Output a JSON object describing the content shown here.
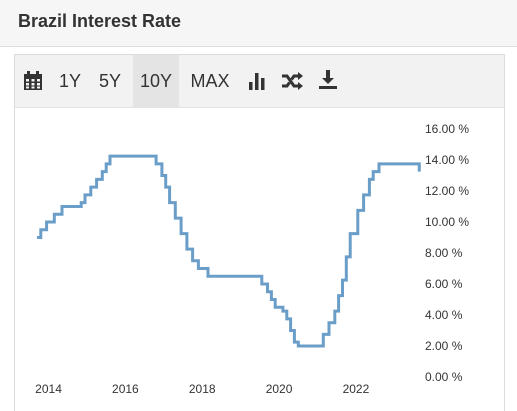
{
  "header": {
    "title": "Brazil Interest Rate"
  },
  "toolbar": {
    "ranges": [
      "1Y",
      "5Y",
      "10Y",
      "MAX"
    ],
    "active_range": "10Y",
    "icons": [
      "calendar-icon",
      "bar-chart-icon",
      "shuffle-icon",
      "download-icon"
    ]
  },
  "colors": {
    "line": "#6a9ec9",
    "toolbar_bg": "#f2f2f2",
    "active_bg": "#e4e4e4"
  },
  "chart_data": {
    "type": "line",
    "title": "",
    "xlabel": "",
    "ylabel": "",
    "x_ticks": [
      "2014",
      "2016",
      "2018",
      "2020",
      "2022"
    ],
    "y_ticks": [
      "0.00 %",
      "2.00 %",
      "4.00 %",
      "6.00 %",
      "8.00 %",
      "10.00 %",
      "12.00 %",
      "14.00 %",
      "16.00 %"
    ],
    "ylim": [
      0,
      16
    ],
    "xlim": [
      2013.7,
      2023.85
    ],
    "step": true,
    "grid": false,
    "series": [
      {
        "values": [
          [
            2013.7,
            9.0
          ],
          [
            2013.8,
            9.5
          ],
          [
            2013.95,
            10.0
          ],
          [
            2014.15,
            10.5
          ],
          [
            2014.35,
            11.0
          ],
          [
            2014.85,
            11.25
          ],
          [
            2014.95,
            11.75
          ],
          [
            2015.1,
            12.25
          ],
          [
            2015.25,
            12.75
          ],
          [
            2015.4,
            13.25
          ],
          [
            2015.5,
            13.75
          ],
          [
            2015.6,
            14.25
          ],
          [
            2016.8,
            13.75
          ],
          [
            2016.95,
            13.0
          ],
          [
            2017.05,
            12.25
          ],
          [
            2017.15,
            11.25
          ],
          [
            2017.3,
            10.25
          ],
          [
            2017.45,
            9.25
          ],
          [
            2017.6,
            8.25
          ],
          [
            2017.75,
            7.5
          ],
          [
            2017.9,
            7.0
          ],
          [
            2018.15,
            6.5
          ],
          [
            2019.55,
            6.0
          ],
          [
            2019.7,
            5.5
          ],
          [
            2019.8,
            5.0
          ],
          [
            2019.9,
            4.5
          ],
          [
            2020.1,
            4.25
          ],
          [
            2020.2,
            3.75
          ],
          [
            2020.3,
            3.0
          ],
          [
            2020.4,
            2.25
          ],
          [
            2020.5,
            2.0
          ],
          [
            2021.15,
            2.75
          ],
          [
            2021.3,
            3.5
          ],
          [
            2021.45,
            4.25
          ],
          [
            2021.55,
            5.25
          ],
          [
            2021.65,
            6.25
          ],
          [
            2021.75,
            7.75
          ],
          [
            2021.85,
            9.25
          ],
          [
            2022.05,
            10.75
          ],
          [
            2022.2,
            11.75
          ],
          [
            2022.35,
            12.75
          ],
          [
            2022.45,
            13.25
          ],
          [
            2022.6,
            13.75
          ],
          [
            2023.6,
            13.75
          ],
          [
            2023.65,
            13.25
          ]
        ]
      }
    ]
  }
}
